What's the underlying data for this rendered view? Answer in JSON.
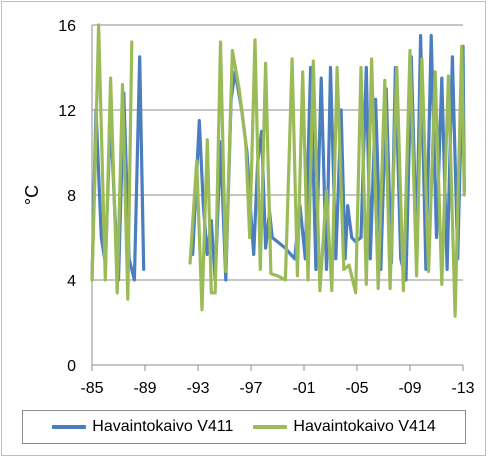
{
  "chart_data": {
    "type": "line",
    "title": "",
    "xlabel": "",
    "ylabel": "°C",
    "ylim": [
      0,
      16
    ],
    "xlim": [
      1985,
      2013
    ],
    "yticks": [
      0,
      4,
      8,
      12,
      16
    ],
    "xticks": [
      {
        "label": "-85",
        "x": 1985
      },
      {
        "label": "-89",
        "x": 1989
      },
      {
        "label": "-93",
        "x": 1993
      },
      {
        "label": "-97",
        "x": 1997
      },
      {
        "label": "-01",
        "x": 2001
      },
      {
        "label": "-05",
        "x": 2005
      },
      {
        "label": "-09",
        "x": 2009
      },
      {
        "label": "-13",
        "x": 2013
      }
    ],
    "grid": "horizontal",
    "legend_position": "bottom",
    "series": [
      {
        "name": "Havaintokaivo V411",
        "color": "#4a7ebf",
        "segments": [
          [
            [
              1985.0,
              4.0
            ],
            [
              1985.3,
              12.0
            ],
            [
              1985.7,
              6.0
            ],
            [
              1986.0,
              4.8
            ],
            [
              1986.4,
              11.8
            ],
            [
              1986.7,
              7.5
            ],
            [
              1987.0,
              4.0
            ],
            [
              1987.4,
              12.8
            ],
            [
              1987.8,
              5.0
            ],
            [
              1988.2,
              4.0
            ],
            [
              1988.6,
              14.5
            ],
            [
              1988.9,
              4.5
            ]
          ],
          [
            [
              1992.6,
              5.2
            ],
            [
              1993.1,
              11.5
            ],
            [
              1993.4,
              7.5
            ],
            [
              1993.7,
              5.2
            ],
            [
              1994.0,
              6.8
            ],
            [
              1994.3,
              4.0
            ],
            [
              1994.7,
              10.5
            ],
            [
              1995.1,
              4.0
            ],
            [
              1995.5,
              12.5
            ],
            [
              1995.8,
              13.8
            ],
            [
              1996.3,
              12.0
            ],
            [
              1996.7,
              10.0
            ],
            [
              1997.0,
              7.0
            ],
            [
              1997.2,
              5.2
            ],
            [
              1997.5,
              9.5
            ],
            [
              1997.8,
              11.0
            ],
            [
              1998.1,
              5.5
            ],
            [
              1998.4,
              7.2
            ],
            [
              1998.6,
              6.0
            ],
            [
              1999.0,
              5.8
            ],
            [
              1999.6,
              5.5
            ],
            [
              2000.0,
              5.2
            ],
            [
              2000.3,
              5.0
            ],
            [
              2000.7,
              7.5
            ],
            [
              2001.1,
              5.0
            ],
            [
              2001.5,
              14.0
            ],
            [
              2001.9,
              4.5
            ],
            [
              2002.3,
              13.5
            ],
            [
              2002.7,
              4.5
            ],
            [
              2003.0,
              14.0
            ],
            [
              2003.4,
              5.0
            ],
            [
              2003.8,
              12.0
            ],
            [
              2004.1,
              5.0
            ],
            [
              2004.3,
              7.5
            ],
            [
              2004.6,
              6.0
            ],
            [
              2004.9,
              5.8
            ],
            [
              2005.3,
              6.0
            ],
            [
              2005.7,
              14.0
            ],
            [
              2006.0,
              5.0
            ],
            [
              2006.4,
              12.5
            ],
            [
              2006.8,
              4.5
            ],
            [
              2007.2,
              13.0
            ],
            [
              2007.6,
              4.8
            ],
            [
              2007.9,
              14.0
            ],
            [
              2008.3,
              5.0
            ],
            [
              2008.7,
              4.0
            ],
            [
              2009.1,
              14.5
            ],
            [
              2009.5,
              5.5
            ],
            [
              2009.8,
              15.5
            ],
            [
              2010.2,
              4.5
            ],
            [
              2010.6,
              15.5
            ],
            [
              2011.0,
              6.0
            ],
            [
              2011.4,
              13.5
            ],
            [
              2011.8,
              4.5
            ],
            [
              2012.2,
              14.5
            ],
            [
              2012.6,
              5.0
            ],
            [
              2013.0,
              15.0
            ],
            [
              2013.1,
              8.2
            ]
          ]
        ]
      },
      {
        "name": "Havaintokaivo V414",
        "color": "#9bbb59",
        "segments": [
          [
            [
              1985.0,
              4.0
            ],
            [
              1985.2,
              8.5
            ],
            [
              1985.5,
              16.0
            ],
            [
              1986.0,
              4.0
            ],
            [
              1986.4,
              13.5
            ],
            [
              1986.9,
              3.4
            ],
            [
              1987.3,
              13.2
            ],
            [
              1987.7,
              3.1
            ],
            [
              1988.0,
              15.2
            ]
          ],
          [
            [
              1992.4,
              4.8
            ],
            [
              1992.9,
              9.6
            ],
            [
              1993.3,
              2.6
            ],
            [
              1993.7,
              10.6
            ],
            [
              1994.0,
              3.4
            ],
            [
              1994.3,
              3.4
            ],
            [
              1994.7,
              15.2
            ],
            [
              1995.1,
              4.4
            ],
            [
              1995.6,
              14.8
            ],
            [
              1996.1,
              13.0
            ],
            [
              1996.6,
              10.5
            ],
            [
              1996.9,
              6.0
            ],
            [
              1997.3,
              15.3
            ],
            [
              1997.7,
              4.5
            ],
            [
              1998.1,
              14.2
            ],
            [
              1998.5,
              4.3
            ],
            [
              1999.0,
              4.2
            ],
            [
              1999.6,
              4.0
            ],
            [
              2000.1,
              14.4
            ],
            [
              2000.5,
              4.2
            ],
            [
              2000.9,
              13.8
            ],
            [
              2001.3,
              4.0
            ],
            [
              2001.7,
              14.3
            ],
            [
              2002.2,
              3.5
            ],
            [
              2002.7,
              8.2
            ],
            [
              2003.1,
              3.5
            ],
            [
              2003.5,
              14.0
            ],
            [
              2004.0,
              4.5
            ],
            [
              2004.4,
              4.7
            ],
            [
              2004.9,
              3.4
            ],
            [
              2005.3,
              14.0
            ],
            [
              2005.7,
              3.8
            ],
            [
              2006.1,
              14.4
            ],
            [
              2006.6,
              3.6
            ],
            [
              2007.1,
              13.4
            ],
            [
              2007.5,
              3.6
            ],
            [
              2008.0,
              14.0
            ],
            [
              2008.5,
              3.5
            ],
            [
              2009.0,
              14.8
            ],
            [
              2009.5,
              4.2
            ],
            [
              2009.9,
              14.4
            ],
            [
              2010.4,
              4.4
            ],
            [
              2010.9,
              13.8
            ],
            [
              2011.4,
              3.8
            ],
            [
              2011.9,
              13.6
            ],
            [
              2012.4,
              2.3
            ],
            [
              2012.9,
              15.0
            ],
            [
              2013.1,
              8.0
            ]
          ]
        ]
      }
    ]
  }
}
